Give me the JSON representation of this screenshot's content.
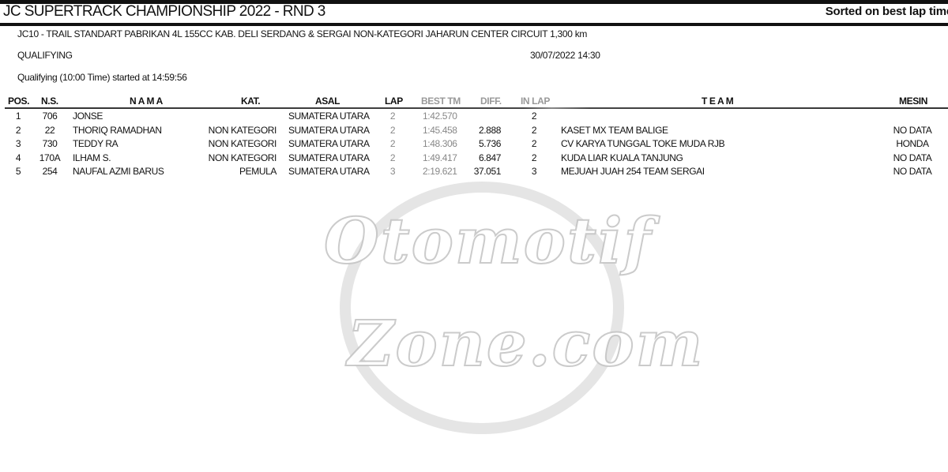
{
  "header": {
    "title": "JC SUPERTRACK CHAMPIONSHIP 2022 - RND 3",
    "sort_note": "Sorted on best lap time"
  },
  "info": {
    "class_line": "JC10 - TRAIL STANDART PABRIKAN 4L 155CC KAB. DELI SERDANG & SERGAI NON-KATEGORI   JAHARUN CENTER CIRCUIT 1,300 km",
    "session": "QUALIFYING",
    "datetime": "30/07/2022 14:30",
    "started": "Qualifying (10:00 Time) started at 14:59:56"
  },
  "columns": {
    "pos": "POS.",
    "ns": "N.S.",
    "nama": "N A M A",
    "kat": "KAT.",
    "asal": "ASAL",
    "lap": "LAP",
    "best": "BEST TM",
    "diff": "DIFF.",
    "inlap": "IN LAP",
    "team": "T E A M",
    "mesin": "MESIN"
  },
  "rows": [
    {
      "pos": "1",
      "ns": "706",
      "nama": "JONSE",
      "kat": "",
      "asal": "SUMATERA UTARA",
      "lap": "2",
      "best": "1:42.570",
      "diff": "",
      "inlap": "2",
      "team": "",
      "mesin": ""
    },
    {
      "pos": "2",
      "ns": "22",
      "nama": "THORIQ RAMADHAN",
      "kat": "NON KATEGORI",
      "asal": "SUMATERA UTARA",
      "lap": "2",
      "best": "1:45.458",
      "diff": "2.888",
      "inlap": "2",
      "team": "KASET MX TEAM BALIGE",
      "mesin": "NO DATA"
    },
    {
      "pos": "3",
      "ns": "730",
      "nama": "TEDDY RA",
      "kat": "NON KATEGORI",
      "asal": "SUMATERA UTARA",
      "lap": "2",
      "best": "1:48.306",
      "diff": "5.736",
      "inlap": "2",
      "team": "CV KARYA TUNGGAL TOKE MUDA RJB",
      "mesin": "HONDA"
    },
    {
      "pos": "4",
      "ns": "170A",
      "nama": "ILHAM S.",
      "kat": "NON KATEGORI",
      "asal": "SUMATERA UTARA",
      "lap": "2",
      "best": "1:49.417",
      "diff": "6.847",
      "inlap": "2",
      "team": "KUDA LIAR KUALA TANJUNG",
      "mesin": "NO DATA"
    },
    {
      "pos": "5",
      "ns": "254",
      "nama": "NAUFAL AZMI BARUS",
      "kat": "PEMULA",
      "asal": "SUMATERA UTARA",
      "lap": "3",
      "best": "2:19.621",
      "diff": "37.051",
      "inlap": "3",
      "team": "MEJUAH JUAH 254 TEAM SERGAI",
      "mesin": "NO DATA"
    }
  ],
  "watermark": {
    "line1": "Otomotif",
    "line2": "Zone.com"
  }
}
